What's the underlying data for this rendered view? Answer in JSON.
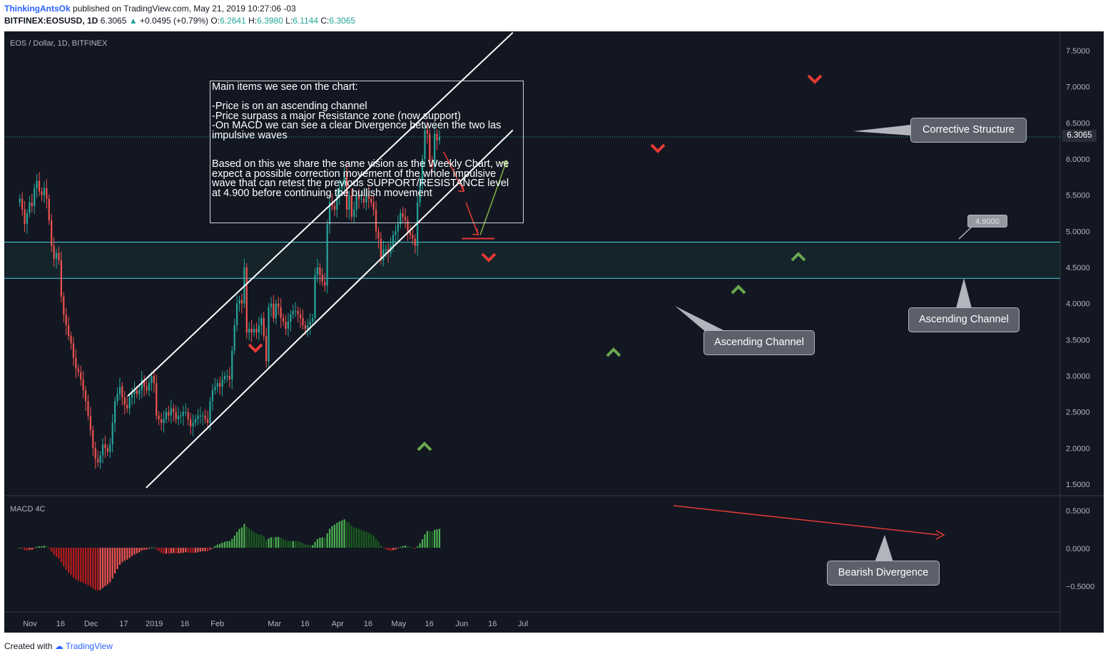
{
  "header": {
    "user": "ThinkingAntsOk",
    "published": "published on TradingView.com, May 21, 2019 10:27:06 -03",
    "symbol": "BITFINEX:EOSUSD, 1D",
    "last": "6.3065",
    "change": "+0.0495 (+0.79%)",
    "o_label": "O:",
    "o": "6.2641",
    "h_label": "H:",
    "h": "6.3980",
    "l_label": "L:",
    "l": "6.1144",
    "c_label": "C:",
    "c": "6.3065"
  },
  "chart_title": "EOS / Dollar, 1D, BITFINEX",
  "macd_label": "MACD 4C",
  "note": {
    "text": "Main items we see on the chart:\n\n-Price is on an ascending channel\n-Price surpass a major Resistance zone (now support)\n-On MACD we can see a clear Divergence between the two las impulsive waves\n\n\nBased on this we share the same vision as the Weekly Chart, we expect a possible correction movement of the whole impulsive wave that can retest the previous SUPPORT/RESISTANCE level at 4.900 before continuing the bullish movement"
  },
  "callouts": {
    "corrective": "Corrective Structure",
    "ascending_mid": "Ascending Channel",
    "ascending_right": "Ascending Channel",
    "bearish": "Bearish Divergence"
  },
  "target_label": "4.9000",
  "price_tag": "6.3065",
  "footer": {
    "created": "Created with",
    "brand": "TradingView"
  },
  "colors": {
    "background": "#131722",
    "up": "#26a69a",
    "down": "#ef5350",
    "zone_line": "#4dd0e1",
    "macd_up": "#4caf50",
    "macd_down": "#e53935",
    "arrow_red": "#e53935",
    "arrow_green": "#6aa84f"
  },
  "chart_data": {
    "type": "candlestick",
    "title": "EOS / Dollar, 1D, BITFINEX",
    "y_ticks": [
      "7.5000",
      "7.0000",
      "6.5000",
      "6.0000",
      "5.5000",
      "5.0000",
      "4.5000",
      "4.0000",
      "3.5000",
      "3.0000",
      "2.5000",
      "2.0000",
      "1.5000"
    ],
    "ylim": [
      1.28,
      7.72
    ],
    "x_ticks": [
      "Nov",
      "16",
      "Dec",
      "17",
      "2019",
      "16",
      "Feb",
      "Mar",
      "16",
      "Apr",
      "16",
      "May",
      "16",
      "Jun",
      "16",
      "Jul"
    ],
    "x_range": [
      "2018-10-27",
      "2019-07-17"
    ],
    "closes": [
      5.45,
      5.3,
      5.1,
      5.25,
      5.4,
      5.35,
      5.6,
      5.7,
      5.55,
      5.5,
      5.6,
      5.45,
      5.15,
      4.8,
      4.62,
      4.7,
      4.6,
      4.1,
      3.85,
      3.7,
      3.55,
      3.45,
      3.25,
      3.1,
      3.05,
      2.95,
      2.8,
      2.65,
      2.45,
      2.25,
      2.0,
      1.85,
      1.8,
      1.9,
      2.05,
      2.0,
      1.95,
      2.05,
      2.35,
      2.65,
      2.75,
      2.85,
      2.7,
      2.6,
      2.55,
      2.7,
      2.75,
      2.8,
      2.75,
      2.8,
      2.95,
      2.85,
      2.8,
      2.9,
      3.0,
      2.9,
      2.45,
      2.4,
      2.35,
      2.4,
      2.5,
      2.45,
      2.55,
      2.5,
      2.4,
      2.45,
      2.45,
      2.5,
      2.5,
      2.4,
      2.3,
      2.35,
      2.4,
      2.45,
      2.45,
      2.45,
      2.4,
      2.35,
      2.65,
      2.8,
      2.85,
      2.9,
      2.85,
      2.95,
      3.0,
      3.0,
      2.95,
      3.35,
      3.7,
      4.0,
      4.05,
      4.0,
      4.5,
      3.6,
      3.65,
      3.6,
      3.65,
      3.6,
      3.7,
      3.8,
      3.55,
      3.2,
      3.95,
      4.0,
      3.8,
      4.0,
      3.95,
      3.8,
      3.75,
      3.65,
      3.75,
      3.85,
      3.9,
      3.9,
      3.85,
      3.8,
      3.7,
      3.65,
      3.7,
      3.75,
      3.8,
      4.4,
      4.5,
      4.4,
      4.3,
      4.25,
      5.1,
      5.4,
      5.35,
      5.3,
      5.5,
      5.6,
      5.65,
      5.8,
      5.3,
      5.5,
      5.2,
      5.3,
      5.5,
      5.45,
      5.45,
      5.4,
      5.5,
      5.45,
      5.4,
      5.3,
      5.0,
      4.9,
      4.6,
      4.75,
      4.75,
      4.7,
      4.8,
      4.95,
      5.0,
      5.1,
      5.25,
      5.2,
      5.15,
      5.0,
      4.95,
      4.9,
      4.8,
      5.4,
      5.65,
      6.0,
      6.4,
      6.35,
      5.95,
      5.9,
      6.35,
      6.26,
      6.31
    ],
    "zone": [
      4.35,
      4.85
    ],
    "channel_lower": {
      "from": [
        "2018-12-28",
        1.45
      ],
      "to": [
        "2019-06-26",
        6.4
      ]
    },
    "channel_upper": {
      "from": [
        "2018-12-19",
        2.72
      ],
      "to": [
        "2019-06-26",
        7.75
      ]
    },
    "macd_ylim": [
      -0.84,
      0.58
    ],
    "macd_ticks": [
      "0.5000",
      "0.0000",
      "−0.5000"
    ]
  }
}
